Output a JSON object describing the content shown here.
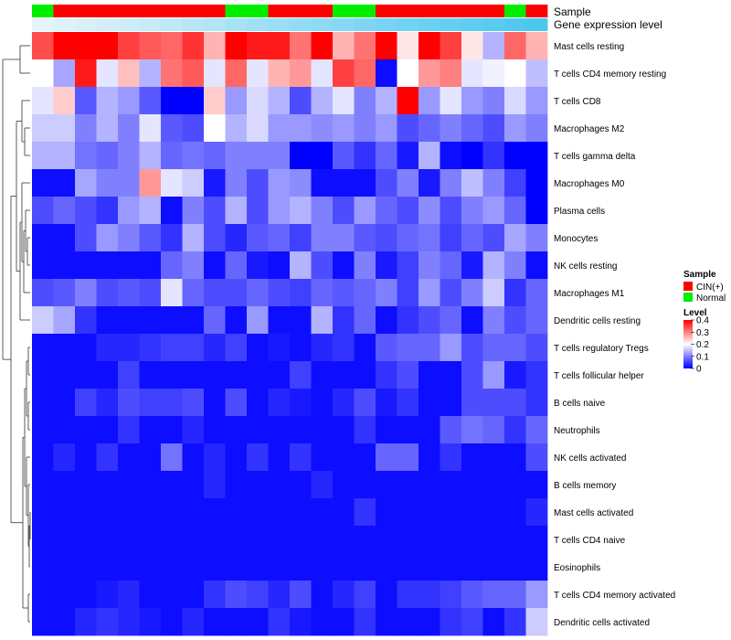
{
  "chart_data": {
    "type": "heatmap",
    "title": "",
    "annotations": {
      "sample_label": "Sample",
      "expression_label": "Gene expression level",
      "sample_groups": [
        "N",
        "C",
        "C",
        "C",
        "C",
        "C",
        "C",
        "C",
        "C",
        "N",
        "N",
        "C",
        "C",
        "C",
        "N",
        "N",
        "C",
        "C",
        "C",
        "C",
        "C",
        "C",
        "N",
        "C"
      ],
      "expression_values": [
        0.02,
        0.05,
        0.09,
        0.13,
        0.17,
        0.21,
        0.26,
        0.31,
        0.36,
        0.41,
        0.46,
        0.5,
        0.54,
        0.58,
        0.63,
        0.68,
        0.72,
        0.76,
        0.8,
        0.84,
        0.88,
        0.92,
        0.96,
        1.0
      ]
    },
    "rows": [
      "Mast cells resting",
      "T cells CD4 memory resting",
      "T cells CD8",
      "Macrophages M2",
      "T cells gamma delta",
      "Macrophages M0",
      "Plasma cells",
      "Monocytes",
      "NK cells resting",
      "Macrophages M1",
      "Dendritic cells resting",
      "T cells regulatory  Tregs",
      "T cells follicular helper",
      "B cells naive",
      "Neutrophils",
      "NK cells activated",
      "B cells memory",
      "Mast cells activated",
      "T cells CD4 naive",
      "Eosinophils",
      "T cells CD4 memory activated",
      "Dendritic cells activated"
    ],
    "values": [
      [
        0.34,
        0.4,
        0.4,
        0.4,
        0.35,
        0.33,
        0.32,
        0.36,
        0.26,
        0.4,
        0.38,
        0.38,
        0.31,
        0.4,
        0.26,
        0.31,
        0.4,
        0.22,
        0.4,
        0.35,
        0.22,
        0.14,
        0.32,
        0.26
      ],
      [
        0.2,
        0.13,
        0.38,
        0.18,
        0.25,
        0.14,
        0.31,
        0.33,
        0.18,
        0.32,
        0.18,
        0.26,
        0.28,
        0.18,
        0.35,
        0.32,
        0.01,
        0.2,
        0.28,
        0.3,
        0.18,
        0.19,
        0.2,
        0.15
      ],
      [
        0.18,
        0.24,
        0.07,
        0.14,
        0.12,
        0.07,
        0.0,
        0.0,
        0.24,
        0.12,
        0.17,
        0.14,
        0.06,
        0.14,
        0.18,
        0.1,
        0.14,
        0.4,
        0.12,
        0.18,
        0.12,
        0.1,
        0.17,
        0.12
      ],
      [
        0.16,
        0.16,
        0.1,
        0.14,
        0.1,
        0.18,
        0.07,
        0.06,
        0.2,
        0.14,
        0.17,
        0.12,
        0.12,
        0.11,
        0.12,
        0.1,
        0.12,
        0.06,
        0.08,
        0.1,
        0.08,
        0.06,
        0.12,
        0.1
      ],
      [
        0.14,
        0.14,
        0.09,
        0.08,
        0.1,
        0.14,
        0.08,
        0.09,
        0.08,
        0.1,
        0.1,
        0.1,
        0.0,
        0.0,
        0.07,
        0.04,
        0.08,
        0.02,
        0.14,
        0.01,
        0.0,
        0.04,
        0.0,
        0.0
      ],
      [
        0.01,
        0.01,
        0.13,
        0.1,
        0.1,
        0.28,
        0.18,
        0.16,
        0.02,
        0.1,
        0.06,
        0.12,
        0.11,
        0.01,
        0.01,
        0.01,
        0.06,
        0.1,
        0.02,
        0.1,
        0.15,
        0.1,
        0.05,
        0.0
      ],
      [
        0.06,
        0.08,
        0.06,
        0.04,
        0.12,
        0.14,
        0.01,
        0.1,
        0.06,
        0.14,
        0.06,
        0.12,
        0.14,
        0.1,
        0.06,
        0.12,
        0.08,
        0.06,
        0.11,
        0.06,
        0.1,
        0.12,
        0.08,
        0.0
      ],
      [
        0.01,
        0.01,
        0.06,
        0.12,
        0.1,
        0.07,
        0.04,
        0.14,
        0.06,
        0.03,
        0.07,
        0.08,
        0.05,
        0.1,
        0.1,
        0.07,
        0.06,
        0.08,
        0.09,
        0.05,
        0.08,
        0.06,
        0.13,
        0.1
      ],
      [
        0.01,
        0.01,
        0.01,
        0.01,
        0.01,
        0.01,
        0.08,
        0.1,
        0.01,
        0.08,
        0.02,
        0.01,
        0.14,
        0.06,
        0.01,
        0.1,
        0.02,
        0.05,
        0.1,
        0.08,
        0.02,
        0.14,
        0.1,
        0.01
      ],
      [
        0.06,
        0.07,
        0.1,
        0.06,
        0.07,
        0.06,
        0.18,
        0.08,
        0.06,
        0.06,
        0.08,
        0.06,
        0.05,
        0.08,
        0.07,
        0.08,
        0.1,
        0.05,
        0.12,
        0.06,
        0.1,
        0.16,
        0.04,
        0.08
      ],
      [
        0.16,
        0.13,
        0.04,
        0.01,
        0.01,
        0.01,
        0.01,
        0.01,
        0.08,
        0.01,
        0.12,
        0.01,
        0.01,
        0.14,
        0.04,
        0.08,
        0.01,
        0.04,
        0.06,
        0.08,
        0.01,
        0.1,
        0.06,
        0.08
      ],
      [
        0.01,
        0.01,
        0.01,
        0.03,
        0.03,
        0.04,
        0.05,
        0.05,
        0.03,
        0.05,
        0.01,
        0.02,
        0.01,
        0.03,
        0.04,
        0.01,
        0.07,
        0.08,
        0.08,
        0.12,
        0.06,
        0.08,
        0.08,
        0.06
      ],
      [
        0.01,
        0.01,
        0.01,
        0.01,
        0.05,
        0.01,
        0.01,
        0.01,
        0.01,
        0.01,
        0.01,
        0.01,
        0.05,
        0.01,
        0.01,
        0.01,
        0.04,
        0.06,
        0.01,
        0.01,
        0.06,
        0.12,
        0.02,
        0.04
      ],
      [
        0.01,
        0.01,
        0.05,
        0.03,
        0.06,
        0.05,
        0.05,
        0.06,
        0.01,
        0.06,
        0.01,
        0.03,
        0.02,
        0.01,
        0.03,
        0.06,
        0.02,
        0.04,
        0.01,
        0.01,
        0.06,
        0.06,
        0.06,
        0.04
      ],
      [
        0.01,
        0.01,
        0.01,
        0.01,
        0.04,
        0.01,
        0.01,
        0.03,
        0.01,
        0.01,
        0.01,
        0.01,
        0.01,
        0.01,
        0.01,
        0.04,
        0.01,
        0.01,
        0.01,
        0.07,
        0.09,
        0.08,
        0.04,
        0.08
      ],
      [
        0.01,
        0.03,
        0.01,
        0.04,
        0.01,
        0.01,
        0.09,
        0.01,
        0.03,
        0.01,
        0.04,
        0.01,
        0.04,
        0.01,
        0.01,
        0.01,
        0.08,
        0.08,
        0.01,
        0.04,
        0.01,
        0.01,
        0.01,
        0.06
      ],
      [
        0.01,
        0.01,
        0.01,
        0.01,
        0.01,
        0.01,
        0.01,
        0.01,
        0.03,
        0.01,
        0.01,
        0.01,
        0.01,
        0.03,
        0.01,
        0.01,
        0.01,
        0.01,
        0.01,
        0.01,
        0.01,
        0.01,
        0.01,
        0.01
      ],
      [
        0.01,
        0.01,
        0.01,
        0.01,
        0.01,
        0.01,
        0.01,
        0.01,
        0.01,
        0.01,
        0.01,
        0.01,
        0.01,
        0.01,
        0.01,
        0.04,
        0.01,
        0.01,
        0.01,
        0.01,
        0.01,
        0.01,
        0.01,
        0.03
      ],
      [
        0.01,
        0.01,
        0.01,
        0.01,
        0.01,
        0.01,
        0.01,
        0.01,
        0.01,
        0.01,
        0.01,
        0.01,
        0.01,
        0.01,
        0.01,
        0.01,
        0.01,
        0.01,
        0.01,
        0.01,
        0.01,
        0.01,
        0.01,
        0.01
      ],
      [
        0.01,
        0.01,
        0.01,
        0.01,
        0.01,
        0.01,
        0.01,
        0.01,
        0.01,
        0.01,
        0.01,
        0.01,
        0.01,
        0.01,
        0.01,
        0.01,
        0.01,
        0.01,
        0.01,
        0.01,
        0.01,
        0.01,
        0.01,
        0.01
      ],
      [
        0.01,
        0.01,
        0.01,
        0.02,
        0.03,
        0.01,
        0.01,
        0.01,
        0.04,
        0.06,
        0.05,
        0.03,
        0.06,
        0.01,
        0.03,
        0.05,
        0.01,
        0.04,
        0.04,
        0.05,
        0.07,
        0.08,
        0.08,
        0.12
      ],
      [
        0.01,
        0.01,
        0.03,
        0.04,
        0.03,
        0.02,
        0.01,
        0.03,
        0.01,
        0.01,
        0.01,
        0.04,
        0.02,
        0.01,
        0.01,
        0.04,
        0.01,
        0.01,
        0.01,
        0.04,
        0.05,
        0.01,
        0.04,
        0.16
      ]
    ],
    "legend": {
      "sample_title": "Sample",
      "sample_entries": [
        {
          "key": "C",
          "label": "CIN(+)",
          "color": "#ff0000"
        },
        {
          "key": "N",
          "label": "Normal",
          "color": "#00ee00"
        }
      ],
      "level_title": "Level",
      "level_ticks": [
        "0.4",
        "0.3",
        "0.2",
        "0.1",
        "0"
      ],
      "level_tick_values": [
        0.4,
        0.3,
        0.2,
        0.1,
        0.0
      ],
      "range": [
        0,
        0.4
      ],
      "placement": "right"
    },
    "colors": {
      "low": "#0000ff",
      "mid": "#ffffff",
      "high": "#ff0000",
      "expression_low": "#e8f4fa",
      "expression_high": "#4cc8ef"
    }
  }
}
